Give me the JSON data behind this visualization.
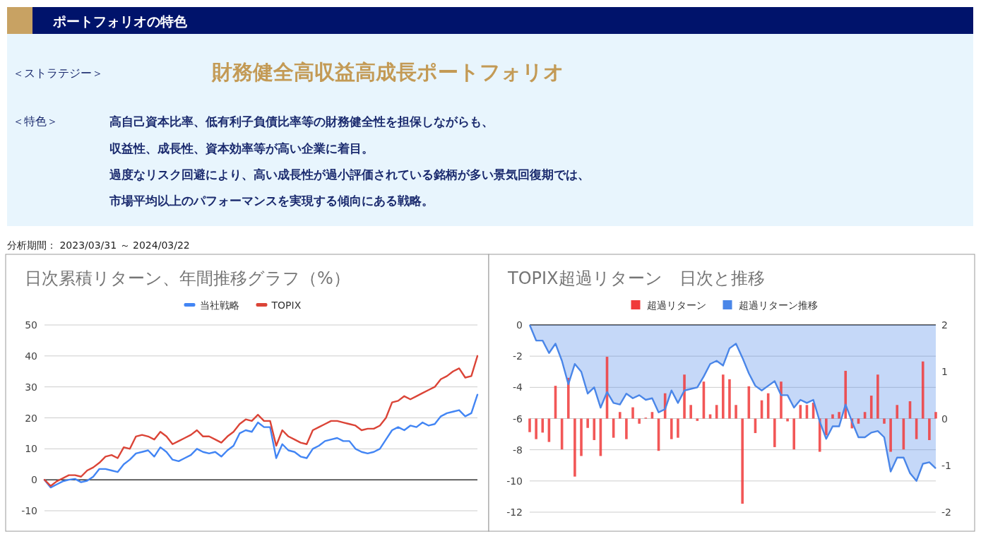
{
  "chart_data": [
    {
      "type": "other",
      "title": "ポートフォリオの特色",
      "annotations": [
        "＜ストラテジー＞",
        "財務健全高収益高成長ポートフォリオ",
        "＜特色＞",
        "高自己資本比率、低有利子負債比率等の財務健全性を担保しながらも、",
        "収益性、成長性、資本効率等が高い企業に着目。",
        "過度なリスク回避により、高い成長性が過小評価されている銘柄が多い景気回復期では、",
        "市場平均以上のパフォーマンスを実現する傾向にある戦略。",
        "分析期間： 2023/03/31 ～ 2024/03/22"
      ]
    },
    {
      "type": "line",
      "title": "日次累積リターン、年間推移グラフ（%）",
      "categories": [
        null,
        null,
        null,
        null,
        null,
        null,
        null,
        null,
        null,
        null,
        null,
        null,
        null,
        null,
        null,
        null,
        null,
        null,
        null,
        null,
        null,
        null,
        null,
        null,
        null,
        null,
        null,
        null,
        null,
        null,
        null,
        null,
        null,
        null,
        null,
        null,
        null,
        null,
        null,
        null,
        null,
        null,
        null,
        null,
        null,
        null,
        null,
        null,
        null,
        null,
        null,
        null,
        null,
        null,
        null,
        null,
        null,
        null,
        null,
        null,
        null,
        null,
        null,
        null,
        null,
        null,
        null,
        null,
        null,
        null,
        null,
        null
      ],
      "series": [
        {
          "name": "当社戦略",
          "color": "#4285f4",
          "values": [
            0,
            -2.5,
            -1.5,
            -0.5,
            0,
            0.3,
            -0.8,
            -0.3,
            1,
            3.5,
            3.5,
            3,
            2.5,
            5,
            6.5,
            8.5,
            9,
            9.5,
            7.5,
            10.5,
            9,
            6.5,
            6,
            7,
            8,
            10,
            9,
            8.5,
            9,
            7.5,
            9.5,
            11,
            15,
            16,
            15.5,
            18.5,
            17,
            17,
            7,
            11.5,
            9.5,
            9,
            7.5,
            7,
            10,
            11,
            12.5,
            13,
            13.5,
            12.5,
            12.5,
            10,
            9,
            8.5,
            9,
            10,
            13,
            16,
            17,
            16,
            17.5,
            17,
            18.5,
            17.5,
            18,
            20.5,
            21.5,
            22,
            22.5,
            20.5,
            21.5,
            27.5
          ]
        },
        {
          "name": "TOPIX",
          "color": "#db4437",
          "values": [
            0,
            -2,
            -0.5,
            0.5,
            1.5,
            1.5,
            1,
            3,
            4,
            5.5,
            7.5,
            8,
            7,
            10.5,
            10,
            14,
            14.5,
            14,
            13,
            15.5,
            14,
            11.5,
            12.5,
            13.5,
            14.5,
            16,
            14,
            14,
            13,
            12,
            14,
            15.5,
            18,
            19.5,
            19,
            21,
            19,
            19,
            11,
            16,
            14,
            13,
            12,
            11.5,
            16,
            17,
            18,
            19,
            19,
            18.5,
            18,
            17.5,
            16,
            16.5,
            16.5,
            17.5,
            20,
            25,
            25.5,
            27,
            26,
            27,
            28,
            29,
            30,
            32.5,
            33.5,
            35,
            36,
            33,
            33.5,
            40
          ]
        }
      ],
      "ylim": [
        -10,
        50
      ],
      "yticks": [
        -10,
        0,
        10,
        20,
        30,
        40,
        50
      ],
      "grid": "y",
      "legend": "top"
    },
    {
      "type": "bar",
      "title": "TOPIX超過リターン　日次と推移",
      "categories": [
        null,
        null,
        null,
        null,
        null,
        null,
        null,
        null,
        null,
        null,
        null,
        null,
        null,
        null,
        null,
        null,
        null,
        null,
        null,
        null,
        null,
        null,
        null,
        null,
        null,
        null,
        null,
        null,
        null,
        null,
        null,
        null,
        null,
        null,
        null,
        null,
        null,
        null,
        null,
        null,
        null,
        null,
        null,
        null,
        null,
        null,
        null,
        null,
        null,
        null,
        null,
        null,
        null,
        null,
        null,
        null,
        null,
        null,
        null,
        null,
        null,
        null,
        null,
        null
      ],
      "series": [
        {
          "name": "超過リターン",
          "type": "bar",
          "axis": "y2",
          "color": "#f03a3a",
          "values": [
            -0.29,
            -0.44,
            -0.3,
            -0.5,
            0.7,
            -0.66,
            0.87,
            -1.24,
            -0.8,
            -0.2,
            -0.46,
            -0.8,
            1.32,
            -0.41,
            0.14,
            -0.44,
            0.24,
            -0.11,
            0.02,
            0.14,
            -0.69,
            0.54,
            -0.44,
            -0.41,
            0.94,
            0.29,
            -0.05,
            0.79,
            0.09,
            0.29,
            0.94,
            0.84,
            0.29,
            -1.82,
            0.69,
            -0.31,
            0.39,
            0.54,
            -0.61,
            0.79,
            -0.06,
            -0.66,
            0.29,
            0.29,
            0.34,
            -0.71,
            -0.36,
            0.09,
            0.14,
            1.02,
            -0.21,
            -0.11,
            0.14,
            0.49,
            0.94,
            -0.11,
            -0.71,
            0.29,
            -0.66,
            0.37,
            -0.44,
            1.22,
            -0.46,
            0.14
          ]
        },
        {
          "name": "超過リターン推移",
          "type": "area",
          "color": "#4a86e8",
          "values": [
            0,
            -1,
            -1,
            -1.8,
            -1.2,
            -2.3,
            -3.8,
            -2.5,
            -3,
            -4.4,
            -4,
            -5.3,
            -4.3,
            -5,
            -5.1,
            -4.4,
            -4.7,
            -4.5,
            -4.8,
            -4.7,
            -5.6,
            -5.4,
            -4.2,
            -5,
            -4.2,
            -4.1,
            -4,
            -3.3,
            -2.5,
            -2.3,
            -2.6,
            -1.5,
            -1.2,
            -2.1,
            -3.1,
            -3.9,
            -4.2,
            -3.9,
            -3.6,
            -4.5,
            -4.5,
            -5.3,
            -4.8,
            -5,
            -4.8,
            -6.2,
            -7.3,
            -6.5,
            -6.5,
            -5.1,
            -6.2,
            -7.2,
            -7.2,
            -6.9,
            -6.8,
            -7.2,
            -9.4,
            -8.5,
            -8.5,
            -9.5,
            -10,
            -8.9,
            -8.8,
            -9.2
          ]
        }
      ],
      "ylim": [
        -12,
        0
      ],
      "yticks": [
        -12,
        -10,
        -8,
        -6,
        -4,
        -2,
        0
      ],
      "y2lim": [
        -2,
        2
      ],
      "y2ticks": [
        -2,
        -1,
        0,
        1,
        2
      ],
      "grid": "y",
      "legend": "top"
    }
  ]
}
